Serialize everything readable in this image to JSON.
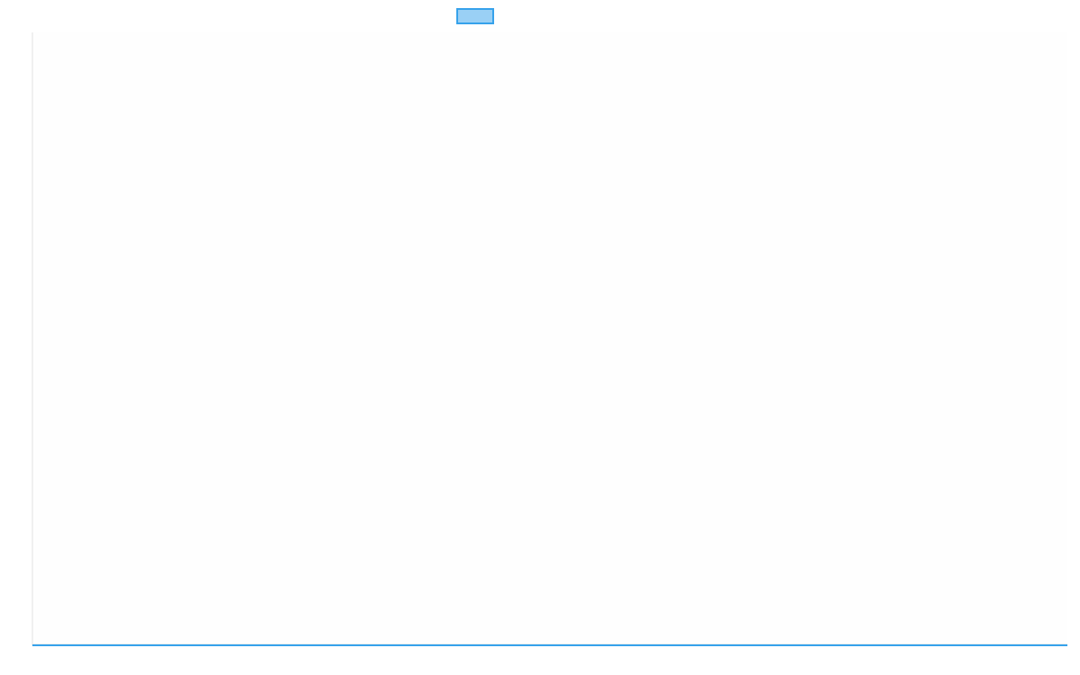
{
  "chart_data": {
    "type": "line",
    "title": "",
    "xlabel": "",
    "ylabel": "",
    "categories": [],
    "series": [
      {
        "values": [],
        "border_color": "#36a2eb",
        "fill_color": "#9ad0f5"
      }
    ],
    "legend": "top",
    "grid": false
  }
}
